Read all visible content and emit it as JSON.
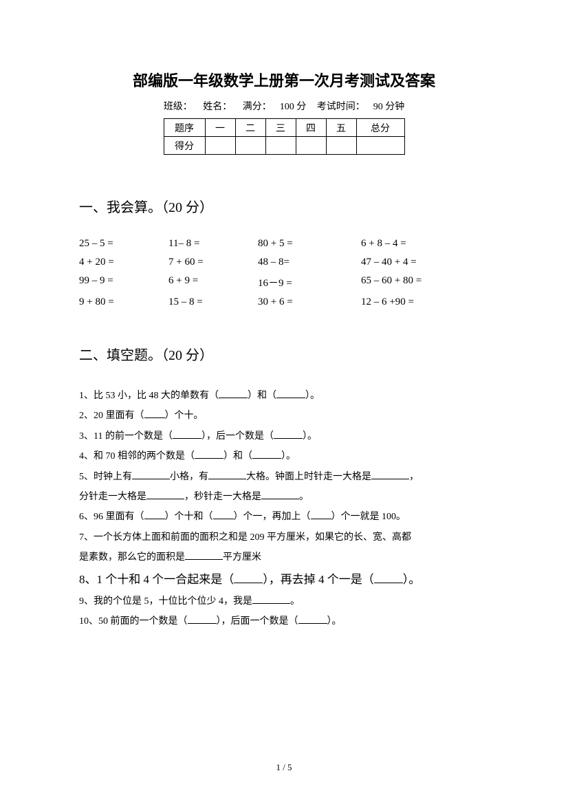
{
  "title": "部编版一年级数学上册第一次月考测试及答案",
  "info": {
    "class_label": "班级：",
    "name_label": "姓名：",
    "full_marks_label": "满分：",
    "full_marks_value": "100 分",
    "time_label": "考试时间：",
    "time_value": "90 分钟"
  },
  "score_table": {
    "row1_label": "题序",
    "cols": [
      "一",
      "二",
      "三",
      "四",
      "五"
    ],
    "total_label": "总分",
    "row2_label": "得分"
  },
  "section1": {
    "heading": "一、我会算。（20 分）",
    "rows": [
      [
        "25 – 5 =",
        "11– 8 =",
        "80 + 5 =",
        "6 + 8 – 4 ="
      ],
      [
        "4 + 20 =",
        "7 + 60 =",
        "48 – 8=",
        "47 – 40 + 4 ="
      ],
      [
        "99 – 9 =",
        "6 + 9 =",
        "16－9 =",
        "65 – 60 + 80 ="
      ],
      [
        "9 + 80 =",
        "15 – 8 =",
        "30 + 6 =",
        "12 – 6 +90 ="
      ]
    ]
  },
  "section2": {
    "heading": "二、填空题。（20 分）",
    "items": {
      "q1a": "1、比 53 小，比 48 大的单数有（",
      "q1b": "）和（",
      "q1c": "）。",
      "q2a": "2、20 里面有（",
      "q2b": "）个十。",
      "q3a": "3、11 的前一个数是（",
      "q3b": "），后一个数是（",
      "q3c": "）。",
      "q4a": "4、和 70 相邻的两个数是（",
      "q4b": "）和（",
      "q4c": "）。",
      "q5a": "5、时钟上有",
      "q5b": "小格，有",
      "q5c": "大格。钟面上时针走一大格是",
      "q5d": "，",
      "q5e": "分针走一大格是",
      "q5f": "，秒针走一大格是",
      "q5g": "。",
      "q6a": "6、96 里面有（",
      "q6b": "）个十和（",
      "q6c": "）个一，再加上（",
      "q6d": "）个一就是 100。",
      "q7a": "7、一个长方体上面和前面的面积之和是 209 平方厘米，如果它的长、宽、高都",
      "q7b": "是素数，那么它的面积是",
      "q7c": "平方厘米",
      "q8a": "8、1 个十和 4 个一合起来是（",
      "q8b": "），再去掉 4 个一是（",
      "q8c": "）。",
      "q9a": "9、我的个位是 5，十位比个位少 4，我是",
      "q9b": "。",
      "q10a": "10、50 前面的一个数是（",
      "q10b": "），后面一个数是（",
      "q10c": "）。"
    }
  },
  "page_num": "1 / 5"
}
